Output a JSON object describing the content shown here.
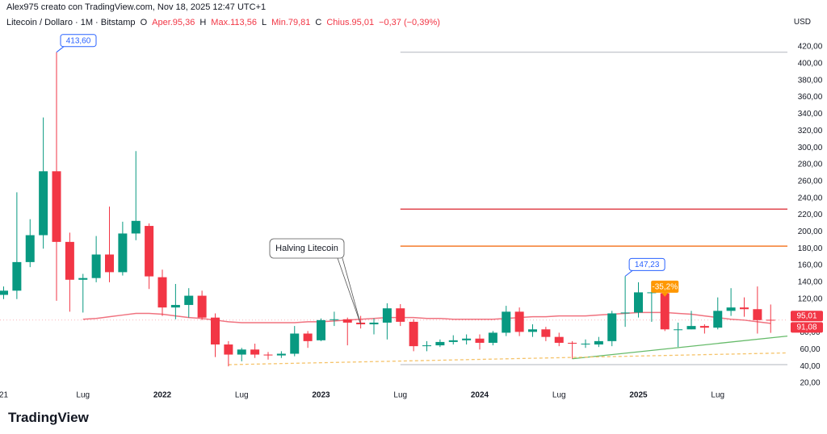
{
  "header": {
    "author": "Alex975 creato con TradingView.com, Nov 18, 2025 12:47 UTC+1",
    "symbol": "Litecoin / Dollaro · 1M · Bitstamp",
    "ohlc": [
      "O",
      "Aper.95,36",
      "H",
      "Max.113,56",
      "L",
      "Min.79,81",
      "C",
      "Chius.95,01",
      "−0,37 (−0,39%)"
    ]
  },
  "footer": {
    "logo": "TradingView"
  },
  "chart_data": {
    "type": "candlestick",
    "y_unit": "USD",
    "categories": [
      "21",
      null,
      null,
      null,
      null,
      null,
      "Lug",
      null,
      null,
      null,
      null,
      null,
      "2022",
      null,
      null,
      null,
      null,
      null,
      "Lug",
      null,
      null,
      null,
      null,
      null,
      "2023",
      null,
      null,
      null,
      null,
      null,
      "Lug",
      null,
      null,
      null,
      null,
      null,
      "2024",
      null,
      null,
      null,
      null,
      null,
      "Lug",
      null,
      null,
      null,
      null,
      null,
      "2025",
      null,
      null,
      null,
      null,
      null,
      "Lug",
      null,
      null,
      null,
      null
    ],
    "open": [
      125,
      130,
      164,
      196,
      272,
      188,
      143,
      145,
      173,
      152,
      198,
      207,
      146,
      110,
      113,
      124,
      98,
      66,
      54,
      60,
      54,
      53,
      55,
      79,
      71,
      95,
      96,
      92,
      90,
      92,
      109,
      93,
      64,
      65,
      69,
      71,
      73,
      68,
      80,
      105,
      81,
      84,
      75,
      68,
      67,
      66,
      70,
      103,
      104,
      128,
      127,
      84,
      84,
      88,
      86,
      106,
      110,
      108,
      95.36
    ],
    "high": [
      135,
      247,
      215,
      336,
      413.6,
      199,
      150,
      195,
      230,
      212,
      296,
      210,
      155,
      138,
      133,
      130,
      103,
      70,
      62,
      67,
      57,
      58,
      88,
      82,
      97,
      105,
      98,
      100,
      97,
      115,
      114,
      96,
      70,
      72,
      77,
      78,
      78,
      82,
      112,
      110,
      90,
      87,
      80,
      70,
      72,
      75,
      106,
      147.23,
      140,
      141,
      140,
      92,
      106,
      90,
      122,
      133,
      122,
      135,
      113.56
    ],
    "low": [
      120,
      120,
      158,
      180,
      118,
      105,
      104,
      140,
      140,
      148,
      190,
      132,
      100,
      96,
      98,
      95,
      51,
      40,
      46,
      50,
      48,
      50,
      52,
      62,
      70,
      88,
      65,
      85,
      78,
      72,
      88,
      58,
      58,
      63,
      66,
      66,
      60,
      65,
      76,
      76,
      75,
      70,
      64,
      49,
      62,
      63,
      64,
      87,
      98,
      93,
      82,
      63,
      84,
      79,
      84,
      100,
      99,
      79,
      79.81
    ],
    "close": [
      130,
      164,
      196,
      272,
      188,
      143,
      145,
      173,
      152,
      198,
      213,
      147,
      110,
      113,
      124,
      98,
      66,
      54,
      60,
      54,
      53,
      55,
      79,
      70,
      95,
      96,
      92,
      90,
      92,
      109,
      93,
      64,
      65,
      69,
      71,
      73,
      68,
      80,
      105,
      81,
      84,
      75,
      68,
      67,
      67,
      70,
      103,
      104,
      128,
      128,
      84,
      84,
      88,
      86,
      106,
      110,
      108,
      95,
      95.01
    ],
    "up_color": "#089981",
    "down_color": "#f23645",
    "ma": [
      null,
      null,
      null,
      null,
      null,
      null,
      96,
      97,
      99,
      101,
      103,
      103,
      102,
      100,
      98,
      97,
      95,
      93,
      92,
      92,
      92,
      92,
      92,
      93,
      93,
      94,
      95,
      96,
      97,
      98,
      98,
      98,
      97,
      97,
      96,
      96,
      96,
      96,
      97,
      98,
      99,
      99,
      100,
      100,
      100,
      101,
      102,
      103,
      104,
      104,
      104,
      103,
      102,
      100,
      98,
      96,
      95,
      93,
      91.08
    ],
    "ma_color": "#f0727f",
    "levels": [
      {
        "value": 413.6,
        "color": "#b2b5be"
      },
      {
        "value": 227,
        "color": "#e0474f"
      },
      {
        "value": 183,
        "color": "#f57c2c"
      },
      {
        "value": 42,
        "color": "#b2b5be"
      }
    ],
    "trendlines": [
      {
        "values": [
          49,
          76
        ],
        "color": "#66bb6a",
        "dashed": false
      },
      {
        "values": [
          42,
          56
        ],
        "color": "#f5c36a",
        "dashed": true
      }
    ],
    "callouts": [
      {
        "label": "413,60",
        "color": "#2962ff"
      },
      {
        "label": "147,23",
        "color": "#2962ff"
      },
      {
        "label": "-35,2%",
        "color": "#ff9800"
      }
    ],
    "annotation": "Halving Litecoin",
    "price_tags": [
      {
        "value": 95.01,
        "label": "95,01",
        "color": "#f23645"
      },
      {
        "value": 91.08,
        "label": "91,08",
        "color": "#f23645"
      }
    ],
    "ylim": [
      5.6,
      437.3
    ],
    "yticks": [
      {
        "value": 20,
        "label": "20,00"
      },
      {
        "value": 40,
        "label": "40,00"
      },
      {
        "value": 60,
        "label": "60,00"
      },
      {
        "value": 80,
        "label": "80,00"
      },
      {
        "value": 100,
        "label": "100,00"
      },
      {
        "value": 120,
        "label": "120,00"
      },
      {
        "value": 140,
        "label": "140,00"
      },
      {
        "value": 160,
        "label": "160,00"
      },
      {
        "value": 180,
        "label": "180,00"
      },
      {
        "value": 200,
        "label": "200,00"
      },
      {
        "value": 220,
        "label": "220,00"
      },
      {
        "value": 240,
        "label": "240,00"
      },
      {
        "value": 260,
        "label": "260,00"
      },
      {
        "value": 280,
        "label": "280,00"
      },
      {
        "value": 300,
        "label": "300,00"
      },
      {
        "value": 320,
        "label": "320,00"
      },
      {
        "value": 340,
        "label": "340,00"
      },
      {
        "value": 360,
        "label": "360,00"
      },
      {
        "value": 380,
        "label": "380,00"
      },
      {
        "value": 400,
        "label": "400,00"
      },
      {
        "value": 420,
        "label": "420,00"
      }
    ],
    "grid": false
  }
}
